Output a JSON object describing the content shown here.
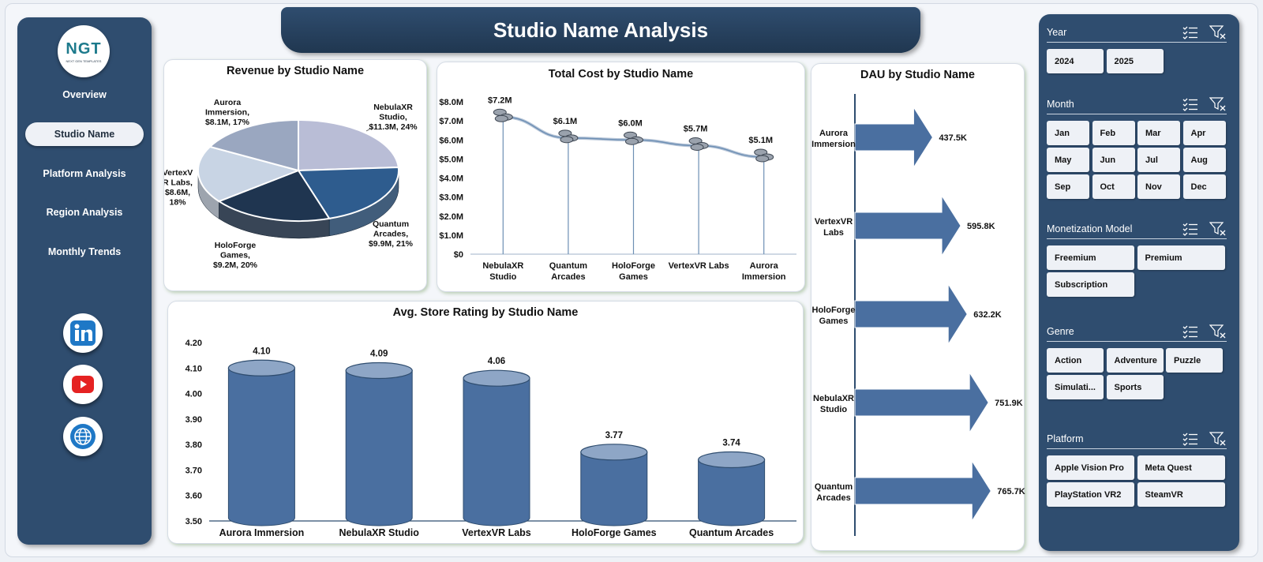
{
  "title": "Studio Name Analysis",
  "logo": {
    "mark": "NGT",
    "sub": "NEXT GEN TEMPLATES"
  },
  "nav": [
    {
      "label": "Overview",
      "active": false
    },
    {
      "label": "Studio Name",
      "active": true
    },
    {
      "label": "Platform Analysis",
      "active": false
    },
    {
      "label": "Region Analysis",
      "active": false
    },
    {
      "label": "Monthly Trends",
      "active": false
    }
  ],
  "social": [
    {
      "icon": "linkedin-icon"
    },
    {
      "icon": "youtube-icon"
    },
    {
      "icon": "globe-icon"
    }
  ],
  "colors": {
    "navy": "#2f4d6f",
    "bar_blue": "#4a6fa0",
    "pie_slices": [
      "#b9bdd6",
      "#2e5c8e",
      "#1f3550",
      "#c8d4e4",
      "#9aa7c0"
    ]
  },
  "charts": {
    "revenue": {
      "title": "Revenue by Studio Name",
      "chart_data": {
        "type": "pie",
        "slices": [
          {
            "label": "NebulaXR Studio",
            "value": 11.3,
            "display": "$11.3M",
            "percent": "24%"
          },
          {
            "label": "Quantum Arcades",
            "value": 9.9,
            "display": "$9.9M",
            "percent": "21%"
          },
          {
            "label": "HoloForge Games",
            "value": 9.2,
            "display": "$9.2M",
            "percent": "20%"
          },
          {
            "label": "VertexVR Labs",
            "value": 8.6,
            "display": "$8.6M",
            "percent": "18%"
          },
          {
            "label": "Aurora Immersion",
            "value": 8.1,
            "display": "$8.1M",
            "percent": "17%"
          }
        ]
      }
    },
    "cost": {
      "title": "Total Cost by Studio Name",
      "chart_data": {
        "type": "line",
        "categories": [
          "NebulaXR Studio",
          "Quantum Arcades",
          "HoloForge Games",
          "VertexVR Labs",
          "Aurora Immersion"
        ],
        "values": [
          7.2,
          6.1,
          6.0,
          5.7,
          5.1
        ],
        "value_labels": [
          "$7.2M",
          "$6.1M",
          "$6.0M",
          "$5.7M",
          "$5.1M"
        ],
        "yticks": [
          "$0",
          "$1.0M",
          "$2.0M",
          "$3.0M",
          "$4.0M",
          "$5.0M",
          "$6.0M",
          "$7.0M",
          "$8.0M"
        ],
        "ylim": [
          0,
          8
        ]
      }
    },
    "dau": {
      "title": "DAU by Studio Name",
      "chart_data": {
        "type": "bar",
        "orientation": "horizontal",
        "categories": [
          "Aurora Immersion",
          "VertexVR Labs",
          "HoloForge Games",
          "NebulaXR Studio",
          "Quantum Arcades"
        ],
        "values": [
          437.5,
          595.8,
          632.2,
          751.9,
          765.7
        ],
        "value_labels": [
          "437.5K",
          "595.8K",
          "632.2K",
          "751.9K",
          "765.7K"
        ]
      }
    },
    "rating": {
      "title": "Avg. Store Rating by Studio Name",
      "chart_data": {
        "type": "bar",
        "categories": [
          "Aurora Immersion",
          "NebulaXR Studio",
          "VertexVR Labs",
          "HoloForge Games",
          "Quantum Arcades"
        ],
        "values": [
          4.1,
          4.09,
          4.06,
          3.77,
          3.74
        ],
        "value_labels": [
          "4.10",
          "4.09",
          "4.06",
          "3.77",
          "3.74"
        ],
        "yticks": [
          "3.50",
          "3.60",
          "3.70",
          "3.80",
          "3.90",
          "4.00",
          "4.10",
          "4.20"
        ],
        "ylim": [
          3.5,
          4.2
        ]
      }
    }
  },
  "filters": [
    {
      "title": "Year",
      "key": "year",
      "options": [
        "2024",
        "2025"
      ]
    },
    {
      "title": "Month",
      "key": "month",
      "options": [
        "Jan",
        "Feb",
        "Mar",
        "Apr",
        "May",
        "Jun",
        "Jul",
        "Aug",
        "Sep",
        "Oct",
        "Nov",
        "Dec"
      ]
    },
    {
      "title": "Monetization Model",
      "key": "monetization",
      "options": [
        "Freemium",
        "Premium",
        "Subscription"
      ]
    },
    {
      "title": "Genre",
      "key": "genre",
      "options": [
        "Action",
        "Adventure",
        "Puzzle",
        "Simulati...",
        "Sports"
      ]
    },
    {
      "title": "Platform",
      "key": "platform",
      "options": [
        "Apple Vision Pro",
        "Meta Quest",
        "PlayStation VR2",
        "SteamVR"
      ]
    }
  ]
}
